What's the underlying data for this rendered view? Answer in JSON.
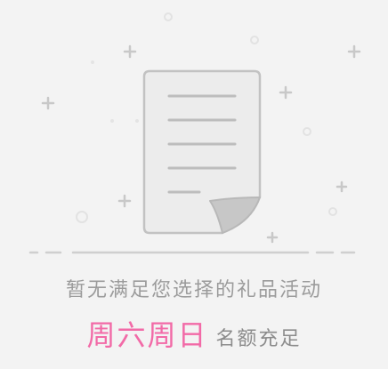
{
  "empty_state": {
    "message": "暂无满足您选择的礼品活动",
    "days": "周六周日",
    "status": "名额充足"
  },
  "colors": {
    "background": "#f3f3f3",
    "icon_fill": "#e9e9e9",
    "icon_stroke": "#c2c2c2",
    "message_text": "#9b9b9b",
    "highlight_pink": "#f26aa7"
  },
  "icon": "empty-document-icon"
}
